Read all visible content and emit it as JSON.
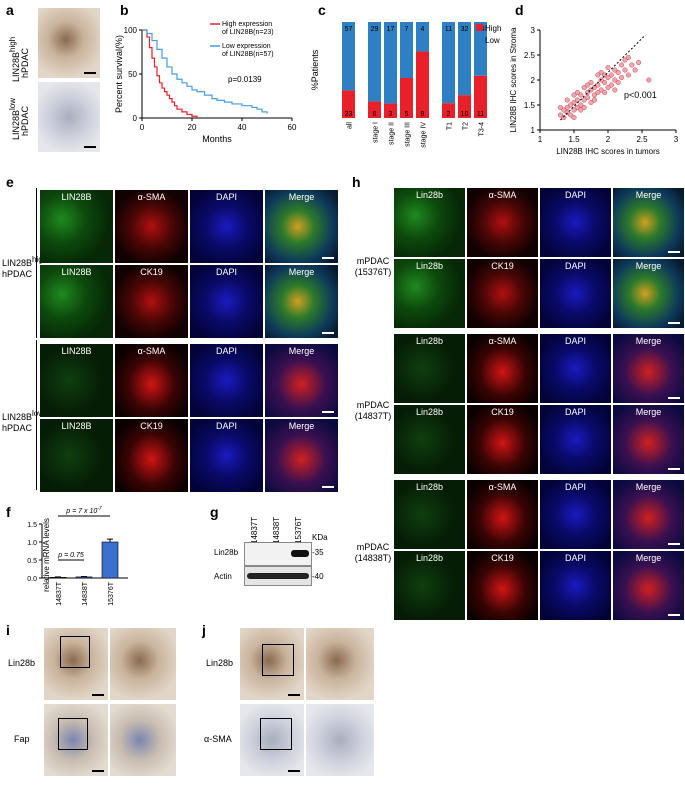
{
  "panel_letters": {
    "a": "a",
    "b": "b",
    "c": "c",
    "d": "d",
    "e": "e",
    "f": "f",
    "g": "g",
    "h": "h",
    "i": "i",
    "j": "j"
  },
  "panel_a": {
    "high_label": "LIN28B",
    "high_sup": "high",
    "high_sub": "hPDAC",
    "low_label": "LIN28B",
    "low_sup": "low",
    "low_sub": "hPDAC"
  },
  "panel_b": {
    "chart_data": {
      "type": "line",
      "xlabel": "Months",
      "ylabel": "Percent survival(%)",
      "xlim": [
        0,
        60
      ],
      "ylim": [
        0,
        100
      ],
      "xticks": [
        0,
        20,
        40,
        60
      ],
      "yticks": [
        0,
        50,
        100
      ],
      "legend_position": "top-right",
      "annotation": "p=0.0139",
      "series": [
        {
          "name": "High expression of LIN28B(n=23)",
          "color": "#e8202a",
          "x": [
            0,
            2,
            3,
            4,
            5,
            6,
            7,
            8,
            9,
            10,
            11,
            12,
            13,
            14,
            16,
            18,
            20,
            22
          ],
          "y": [
            100,
            92,
            80,
            68,
            58,
            48,
            40,
            34,
            30,
            26,
            22,
            18,
            14,
            10,
            7,
            4,
            2,
            0
          ]
        },
        {
          "name": "Low expression of LIN28B(n=57)",
          "color": "#4a9be0",
          "x": [
            0,
            2,
            4,
            6,
            8,
            10,
            12,
            14,
            16,
            18,
            20,
            22,
            25,
            28,
            30,
            33,
            36,
            40,
            44,
            46,
            48,
            50
          ],
          "y": [
            100,
            96,
            88,
            78,
            68,
            58,
            50,
            44,
            40,
            36,
            32,
            30,
            26,
            22,
            20,
            18,
            16,
            14,
            12,
            10,
            7,
            5
          ]
        }
      ]
    }
  },
  "panel_c": {
    "chart_data": {
      "type": "bar",
      "ylabel": "%Patients",
      "categories": [
        "all",
        "stage I",
        "stage II",
        "stage III",
        "stage IV",
        "T1",
        "T2",
        "T3-4"
      ],
      "series": [
        {
          "name": "High",
          "color": "#e8202a",
          "counts": [
            23,
            6,
            3,
            5,
            9,
            2,
            10,
            11
          ]
        },
        {
          "name": "Low",
          "color": "#2f7fc4",
          "counts": [
            57,
            29,
            17,
            7,
            4,
            11,
            32,
            14
          ]
        }
      ],
      "legend_position": "top-right"
    }
  },
  "panel_d": {
    "chart_data": {
      "type": "scatter",
      "xlabel": "LIN28B IHC scores in tumors",
      "ylabel": "LIN28B IHC scores in Stroma",
      "xlim": [
        1,
        3
      ],
      "ylim": [
        1,
        3
      ],
      "xticks": [
        "1",
        "1.5",
        "2",
        "2.5",
        "3"
      ],
      "yticks": [
        "1",
        "1.5",
        "2",
        "2.5",
        "3"
      ],
      "annotation": "p<0.001",
      "point_color": "#e8808a",
      "trend": [
        [
          1.3,
          1.2
        ],
        [
          2.55,
          2.9
        ]
      ],
      "points": [
        [
          1.3,
          1.3
        ],
        [
          1.35,
          1.4
        ],
        [
          1.4,
          1.35
        ],
        [
          1.45,
          1.5
        ],
        [
          1.5,
          1.4
        ],
        [
          1.5,
          1.55
        ],
        [
          1.55,
          1.6
        ],
        [
          1.6,
          1.5
        ],
        [
          1.6,
          1.7
        ],
        [
          1.65,
          1.6
        ],
        [
          1.7,
          1.75
        ],
        [
          1.7,
          1.65
        ],
        [
          1.75,
          1.8
        ],
        [
          1.8,
          1.7
        ],
        [
          1.8,
          1.85
        ],
        [
          1.85,
          1.9
        ],
        [
          1.9,
          1.8
        ],
        [
          1.9,
          2.0
        ],
        [
          1.95,
          1.95
        ],
        [
          2.0,
          2.05
        ],
        [
          2.0,
          1.85
        ],
        [
          2.05,
          2.1
        ],
        [
          2.1,
          2.0
        ],
        [
          2.1,
          2.2
        ],
        [
          2.15,
          2.15
        ],
        [
          2.2,
          2.05
        ],
        [
          2.2,
          2.3
        ],
        [
          2.25,
          2.2
        ],
        [
          2.3,
          2.1
        ],
        [
          2.35,
          2.3
        ],
        [
          2.4,
          2.2
        ],
        [
          2.6,
          2.0
        ],
        [
          1.4,
          1.6
        ],
        [
          1.55,
          1.45
        ],
        [
          1.65,
          1.85
        ],
        [
          1.75,
          1.55
        ],
        [
          1.85,
          2.1
        ],
        [
          1.95,
          1.75
        ],
        [
          2.05,
          1.9
        ],
        [
          2.15,
          1.95
        ],
        [
          1.35,
          1.25
        ],
        [
          1.45,
          1.3
        ],
        [
          1.5,
          1.7
        ],
        [
          1.6,
          1.4
        ],
        [
          1.7,
          1.9
        ],
        [
          1.8,
          1.6
        ],
        [
          1.9,
          2.15
        ],
        [
          2.0,
          2.25
        ],
        [
          2.1,
          1.8
        ],
        [
          2.25,
          2.4
        ],
        [
          1.4,
          1.45
        ],
        [
          1.55,
          1.75
        ],
        [
          1.65,
          1.45
        ],
        [
          1.75,
          1.95
        ],
        [
          1.85,
          1.75
        ],
        [
          1.95,
          2.1
        ],
        [
          2.3,
          2.45
        ],
        [
          2.45,
          2.35
        ],
        [
          1.3,
          1.45
        ],
        [
          1.5,
          1.25
        ]
      ]
    }
  },
  "panel_e": {
    "row_group_high": {
      "label": "LIN28B",
      "sup": "high",
      "sub": "hPDAC"
    },
    "row_group_low": {
      "label": "LIN28B",
      "sup": "low",
      "sub": "hPDAC"
    },
    "rows": [
      [
        "LIN28B",
        "α-SMA",
        "DAPI",
        "Merge"
      ],
      [
        "LIN28B",
        "CK19",
        "DAPI",
        "Merge"
      ],
      [
        "LIN28B",
        "α-SMA",
        "DAPI",
        "Merge"
      ],
      [
        "LIN28B",
        "CK19",
        "DAPI",
        "Merge"
      ]
    ]
  },
  "panel_f": {
    "chart_data": {
      "type": "bar",
      "ylabel": "relative mRNA levels",
      "categories": [
        "14837T",
        "14838T",
        "15376T"
      ],
      "values": [
        0.02,
        0.03,
        1.0
      ],
      "errors": [
        0.01,
        0.01,
        0.08
      ],
      "ylim": [
        0,
        1.5
      ],
      "yticks": [
        "0.0",
        "0.5",
        "1.0",
        "1.5"
      ],
      "bar_color": "#3b6fd0",
      "sig_top": "p = 7 x 10",
      "sig_top_exp": "-7",
      "sig_low": "p = 0.75"
    }
  },
  "panel_g": {
    "lanes": [
      "14837T",
      "14838T",
      "15376T"
    ],
    "kda_label": "KDa",
    "rows": [
      {
        "name": "Lin28b",
        "marker": "-35"
      },
      {
        "name": "Actin",
        "marker": "-40"
      }
    ]
  },
  "panel_h": {
    "groups": [
      {
        "label": "mPDAC",
        "sub": "(15376T)"
      },
      {
        "label": "mPDAC",
        "sub": "(14837T)"
      },
      {
        "label": "mPDAC",
        "sub": "(14838T)"
      }
    ],
    "rows": [
      [
        "Lin28b",
        "α-SMA",
        "DAPI",
        "Merge"
      ],
      [
        "Lin28b",
        "CK19",
        "DAPI",
        "Merge"
      ],
      [
        "Lin28b",
        "α-SMA",
        "DAPI",
        "Merge"
      ],
      [
        "Lin28b",
        "CK19",
        "DAPI",
        "Merge"
      ],
      [
        "Lin28b",
        "α-SMA",
        "DAPI",
        "Merge"
      ],
      [
        "Lin28b",
        "CK19",
        "DAPI",
        "Merge"
      ]
    ]
  },
  "panel_i": {
    "row_labels": [
      "Lin28b",
      "Fap"
    ]
  },
  "panel_j": {
    "row_labels": [
      "Lin28b",
      "α-SMA"
    ]
  }
}
